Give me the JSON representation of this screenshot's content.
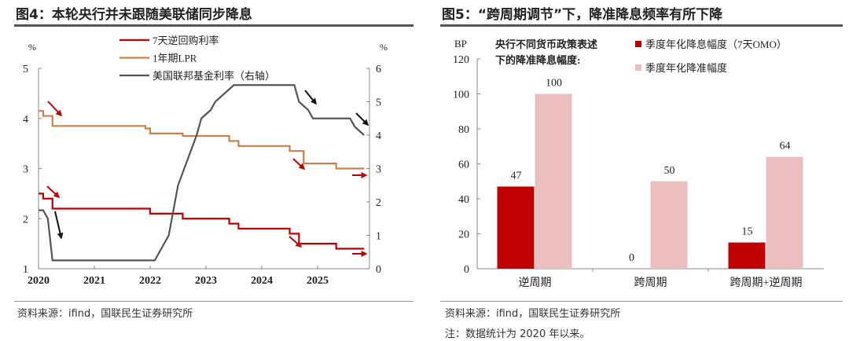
{
  "left": {
    "title": "图4：本轮央行并未跟随美联储同步降息",
    "source": "资料来源：ifind，国联民生证券研究所"
  },
  "right": {
    "title": "图5：“跨周期调节”下，降准降息频率有所下降",
    "source": "资料来源：ifind，国联民生证券研究所",
    "note": "注：数据统计为 2020 年以来。"
  },
  "colors": {
    "red": "#c00000",
    "orange": "#c9804a",
    "gray": "#555555",
    "pink": "#ebbfc0"
  },
  "chart_data": [
    {
      "type": "line",
      "left_unit": "%",
      "right_unit": "%",
      "ylim_left": [
        1,
        5
      ],
      "ylim_right": [
        0,
        6
      ],
      "yticks_left": [
        "1",
        "2",
        "3",
        "4",
        "5"
      ],
      "yticks_right": [
        "0",
        "1",
        "2",
        "3",
        "4",
        "5",
        "6"
      ],
      "xticks": [
        "2020",
        "2021",
        "2022",
        "2023",
        "2024",
        "2025"
      ],
      "x_end": "2025-11",
      "legend_position": "top",
      "series": [
        {
          "name": "7天逆回购利率",
          "axis": "left",
          "color": "#c00000",
          "step": true,
          "points": [
            [
              "2020-01",
              2.5
            ],
            [
              "2020-02",
              2.4
            ],
            [
              "2020-04",
              2.2
            ],
            [
              "2022-01",
              2.1
            ],
            [
              "2022-08",
              2.0
            ],
            [
              "2023-06",
              1.9
            ],
            [
              "2023-08",
              1.8
            ],
            [
              "2024-07",
              1.7
            ],
            [
              "2024-09",
              1.5
            ],
            [
              "2025-05",
              1.4
            ]
          ]
        },
        {
          "name": "1年期LPR",
          "axis": "left",
          "color": "#c9804a",
          "step": true,
          "points": [
            [
              "2020-01",
              4.15
            ],
            [
              "2020-02",
              4.05
            ],
            [
              "2020-04",
              3.85
            ],
            [
              "2021-12",
              3.8
            ],
            [
              "2022-01",
              3.7
            ],
            [
              "2022-08",
              3.65
            ],
            [
              "2023-06",
              3.55
            ],
            [
              "2023-08",
              3.45
            ],
            [
              "2024-07",
              3.35
            ],
            [
              "2024-10",
              3.1
            ],
            [
              "2025-05",
              3.0
            ]
          ]
        },
        {
          "name": "美国联邦基金利率（右轴）",
          "axis": "right",
          "color": "#555555",
          "step": false,
          "points": [
            [
              "2020-01",
              1.75
            ],
            [
              "2020-02",
              1.75
            ],
            [
              "2020-03",
              1.5
            ],
            [
              "2020-04",
              0.25
            ],
            [
              "2022-02",
              0.25
            ],
            [
              "2022-03",
              0.5
            ],
            [
              "2022-05",
              1.0
            ],
            [
              "2022-06",
              1.75
            ],
            [
              "2022-07",
              2.5
            ],
            [
              "2022-09",
              3.25
            ],
            [
              "2022-11",
              4.0
            ],
            [
              "2022-12",
              4.5
            ],
            [
              "2023-02",
              4.75
            ],
            [
              "2023-03",
              5.0
            ],
            [
              "2023-05",
              5.25
            ],
            [
              "2023-07",
              5.5
            ],
            [
              "2024-08",
              5.5
            ],
            [
              "2024-09",
              5.0
            ],
            [
              "2024-11",
              4.75
            ],
            [
              "2024-12",
              4.5
            ],
            [
              "2025-08",
              4.5
            ],
            [
              "2025-09",
              4.25
            ],
            [
              "2025-11",
              4.0
            ]
          ]
        }
      ]
    },
    {
      "type": "bar",
      "ylabel": "BP",
      "ylim": [
        0,
        120
      ],
      "yticks": [
        "0",
        "20",
        "40",
        "60",
        "80",
        "100",
        "120"
      ],
      "annotation": [
        "央行不同货币政策表述",
        "下的降准降息幅度:"
      ],
      "categories": [
        "逆周期",
        "跨周期",
        "跨周期+逆周期"
      ],
      "legend_position": "top-right",
      "series": [
        {
          "name": "季度年化降息幅度（7天OMO）",
          "color": "#c00000",
          "values": [
            47,
            0,
            15
          ]
        },
        {
          "name": "季度年化降准幅度",
          "color": "#ebbfc0",
          "values": [
            100,
            50,
            64
          ]
        }
      ]
    }
  ]
}
